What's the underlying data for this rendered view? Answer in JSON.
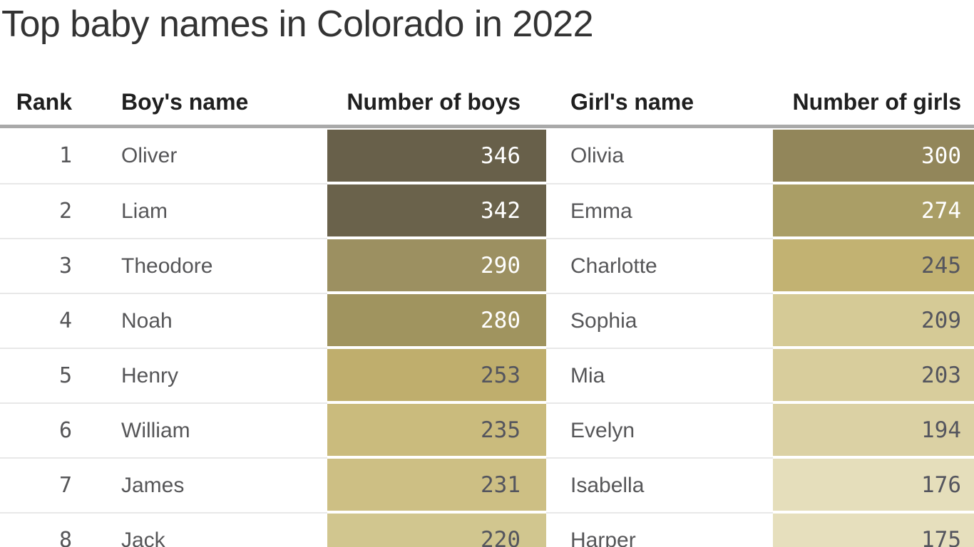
{
  "page": {
    "background": "#ffffff"
  },
  "chart_data": {
    "type": "table",
    "title": "Top baby names in Colorado in 2022",
    "columns": [
      "Rank",
      "Boy's name",
      "Number of boys",
      "Girl's name",
      "Number of girls"
    ],
    "heatmap": {
      "description": "count cells shaded on a sequential light-to-dark olive scale by value",
      "min_value": 175,
      "max_value": 346,
      "lightest": "#e6dfbd",
      "darkest": "#68604a"
    },
    "rows": [
      {
        "rank": "1",
        "boy_name": "Oliver",
        "boys_count": "346",
        "boys_bg": "#68604a",
        "boys_text": "#ffffff",
        "girl_name": "Olivia",
        "girls_count": "300",
        "girls_bg": "#92865a",
        "girls_text": "#ffffff"
      },
      {
        "rank": "2",
        "boy_name": "Liam",
        "boys_count": "342",
        "boys_bg": "#6a624b",
        "boys_text": "#ffffff",
        "girl_name": "Emma",
        "girls_count": "274",
        "girls_bg": "#aa9e66",
        "girls_text": "#ffffff"
      },
      {
        "rank": "3",
        "boy_name": "Theodore",
        "boys_count": "290",
        "boys_bg": "#9c9061",
        "boys_text": "#ffffff",
        "girl_name": "Charlotte",
        "girls_count": "245",
        "girls_bg": "#c2b272",
        "girls_text": "#54555e"
      },
      {
        "rank": "4",
        "boy_name": "Noah",
        "boys_count": "280",
        "boys_bg": "#a0945f",
        "boys_text": "#ffffff",
        "girl_name": "Sophia",
        "girls_count": "209",
        "girls_bg": "#d5ca96",
        "girls_text": "#54555e"
      },
      {
        "rank": "5",
        "boy_name": "Henry",
        "boys_count": "253",
        "boys_bg": "#bfae6d",
        "boys_text": "#54555e",
        "girl_name": "Mia",
        "girls_count": "203",
        "girls_bg": "#d8cd9c",
        "girls_text": "#54555e"
      },
      {
        "rank": "6",
        "boy_name": "William",
        "boys_count": "235",
        "boys_bg": "#cabb7d",
        "boys_text": "#54555e",
        "girl_name": "Evelyn",
        "girls_count": "194",
        "girls_bg": "#dbd1a4",
        "girls_text": "#54555e"
      },
      {
        "rank": "7",
        "boy_name": "James",
        "boys_count": "231",
        "boys_bg": "#cdbf84",
        "boys_text": "#54555e",
        "girl_name": "Isabella",
        "girls_count": "176",
        "girls_bg": "#e5debb",
        "girls_text": "#54555e"
      },
      {
        "rank": "8",
        "boy_name": "Jack",
        "boys_count": "220",
        "boys_bg": "#d1c68f",
        "boys_text": "#54555e",
        "girl_name": "Harper",
        "girls_count": "175",
        "girls_bg": "#e6dfbd",
        "girls_text": "#54555e"
      }
    ]
  },
  "styles": {
    "title_color": "#333333",
    "header_color": "#1f1f1f",
    "name_color": "#565658",
    "dark_value_color": "#54555e",
    "light_value_color": "#ffffff",
    "thick_divider_color": "#a9a9a9",
    "row_divider_color": "#e8e8e8",
    "page_background": "#ffffff"
  }
}
